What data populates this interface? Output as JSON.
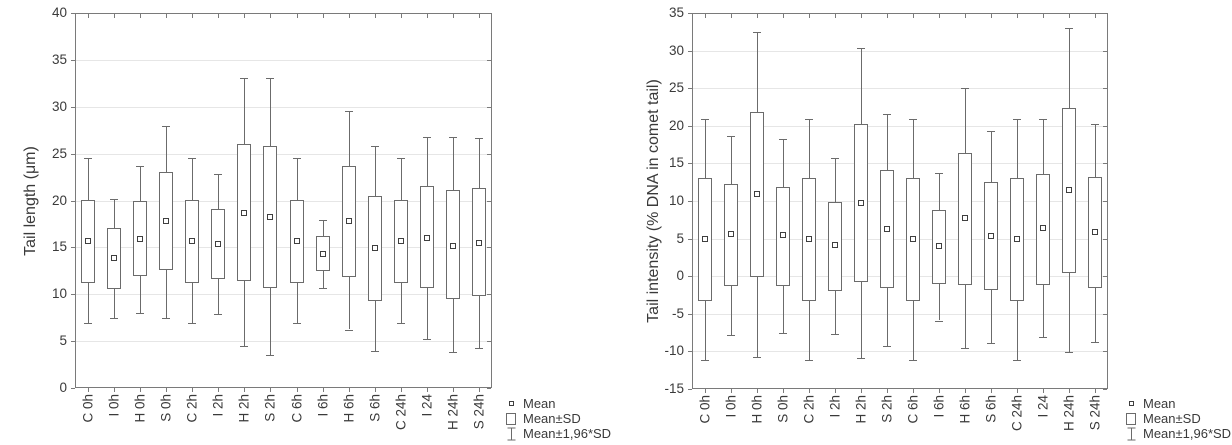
{
  "chart_data": [
    {
      "type": "box",
      "title": "",
      "ylabel": "Tail length (μm)",
      "xlabel": "",
      "ylim": [
        0,
        40
      ],
      "yticks": [
        0,
        5,
        10,
        15,
        20,
        25,
        30,
        35,
        40
      ],
      "grid": true,
      "legend_position": "bottom-right",
      "legend": [
        "Mean",
        "Mean±SD",
        "Mean±1,96*SD"
      ],
      "categories": [
        "C 0h",
        "I 0h",
        "H 0h",
        "S 0h",
        "C 2h",
        "I 2h",
        "H 2h",
        "S 2h",
        "C 6h",
        "I 6h",
        "H 6h",
        "S 6h",
        "C 24h",
        "I 24",
        "H 24h",
        "S 24h"
      ],
      "series": [
        {
          "name": "mean",
          "values": [
            15.7,
            13.9,
            15.9,
            17.8,
            15.7,
            15.4,
            18.7,
            18.2,
            15.7,
            14.3,
            17.8,
            14.9,
            15.7,
            16.0,
            15.2,
            15.5
          ]
        },
        {
          "name": "mean_minus_sd",
          "values": [
            11.2,
            10.6,
            11.9,
            12.6,
            11.2,
            11.6,
            11.4,
            10.7,
            11.2,
            12.5,
            11.9,
            9.3,
            11.2,
            10.6,
            9.5,
            9.8
          ]
        },
        {
          "name": "mean_plus_sd",
          "values": [
            20.1,
            17.1,
            19.9,
            23.0,
            20.1,
            19.1,
            26.0,
            25.8,
            20.1,
            16.2,
            23.7,
            20.5,
            20.1,
            21.5,
            21.1,
            21.3
          ]
        },
        {
          "name": "mean_minus_196sd",
          "values": [
            6.9,
            7.5,
            8.0,
            7.5,
            6.9,
            7.9,
            4.5,
            3.5,
            6.9,
            10.7,
            6.2,
            3.9,
            6.9,
            5.2,
            3.8,
            4.3
          ]
        },
        {
          "name": "mean_plus_196sd",
          "values": [
            24.5,
            20.2,
            23.7,
            28.0,
            24.5,
            22.8,
            33.1,
            33.1,
            24.5,
            17.9,
            29.5,
            25.8,
            24.5,
            26.8,
            26.8,
            26.7
          ]
        }
      ]
    },
    {
      "type": "box",
      "title": "",
      "ylabel": "Tail intensity (% DNA in comet tail)",
      "xlabel": "",
      "ylim": [
        -15,
        35
      ],
      "yticks": [
        -15,
        -10,
        -5,
        0,
        5,
        10,
        15,
        20,
        25,
        30,
        35
      ],
      "grid": true,
      "legend_position": "bottom-right",
      "legend": [
        "Mean",
        "Mean±SD",
        "Mean±1,96*SD"
      ],
      "categories": [
        "C 0h",
        "I 0h",
        "H 0h",
        "S 0h",
        "C 2h",
        "I 2h",
        "H 2h",
        "S 2h",
        "C 6h",
        "I 6h",
        "H 6h",
        "S 6h",
        "C 24h",
        "I 24",
        "H 24h",
        "S 24h"
      ],
      "series": [
        {
          "name": "mean",
          "values": [
            4.9,
            5.6,
            10.9,
            5.5,
            4.9,
            4.1,
            9.8,
            6.3,
            4.9,
            4.0,
            7.7,
            5.4,
            4.9,
            6.4,
            11.5,
            5.9
          ]
        },
        {
          "name": "mean_minus_sd",
          "values": [
            -3.3,
            -1.2,
            -0.2,
            -1.2,
            -3.3,
            -1.9,
            -0.8,
            -1.6,
            -3.3,
            -1.0,
            -1.1,
            -1.8,
            -3.3,
            -1.2,
            0.5,
            -1.6
          ]
        },
        {
          "name": "mean_plus_sd",
          "values": [
            13.0,
            12.3,
            21.8,
            11.9,
            13.0,
            9.9,
            20.2,
            14.1,
            13.0,
            8.8,
            16.4,
            12.5,
            13.0,
            13.6,
            22.4,
            13.2
          ]
        },
        {
          "name": "mean_minus_196sd",
          "values": [
            -11.2,
            -7.8,
            -10.8,
            -7.6,
            -11.2,
            -7.7,
            -10.9,
            -9.3,
            -11.2,
            -5.9,
            -9.6,
            -8.9,
            -11.2,
            -8.1,
            -10.1,
            -8.7
          ]
        },
        {
          "name": "mean_plus_196sd",
          "values": [
            20.9,
            18.7,
            32.5,
            18.3,
            20.9,
            15.7,
            30.3,
            21.6,
            20.9,
            13.7,
            25.0,
            19.3,
            20.9,
            20.9,
            33.0,
            20.3
          ]
        }
      ]
    }
  ]
}
